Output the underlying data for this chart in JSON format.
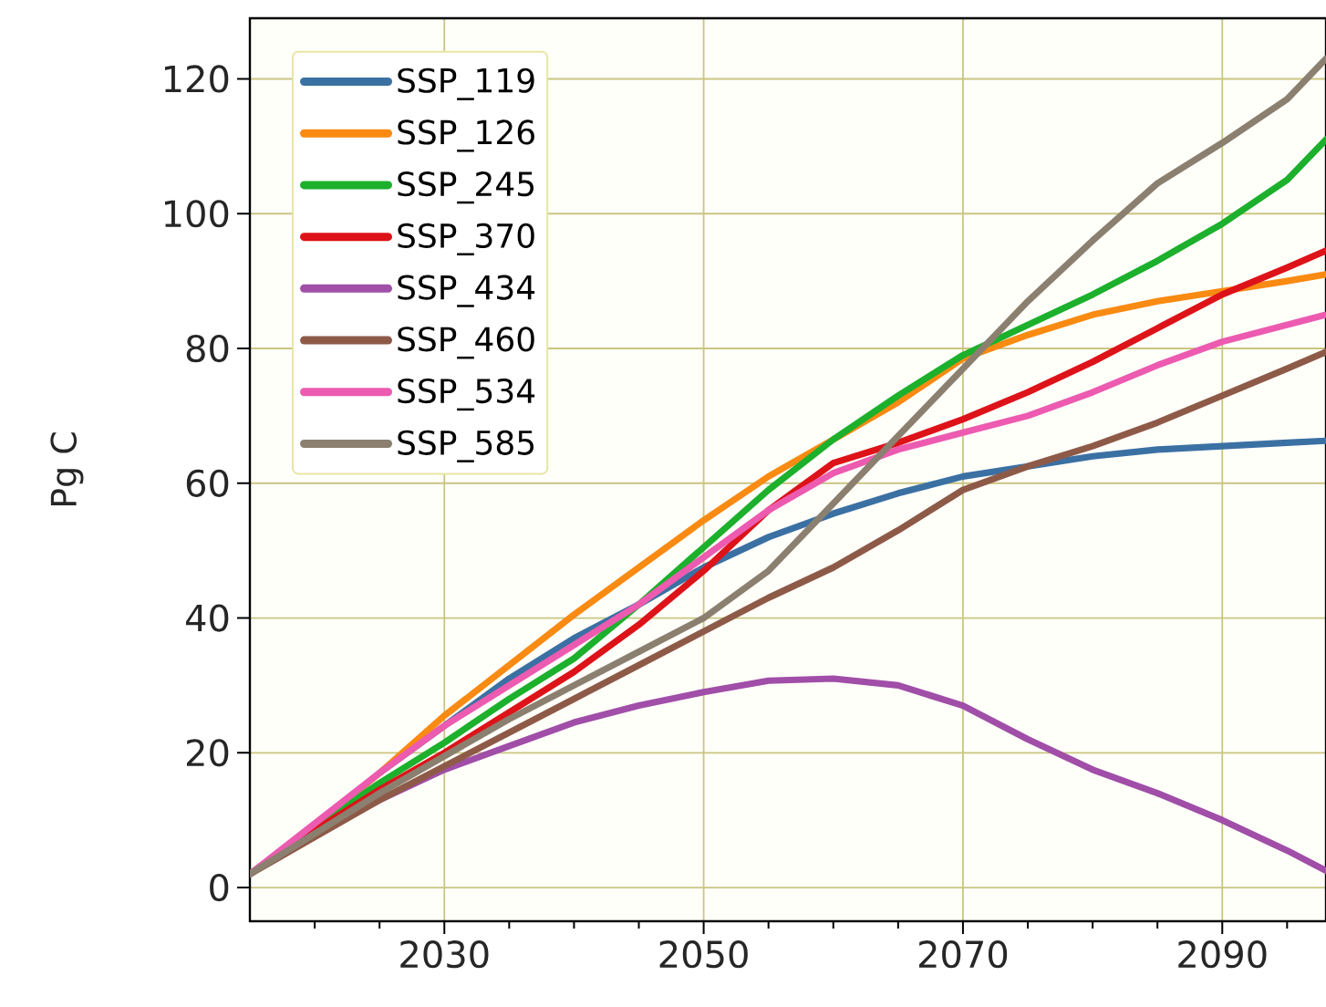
{
  "chart_data": {
    "type": "line",
    "ylabel": "Pg C",
    "x": [
      2015,
      2020,
      2025,
      2030,
      2035,
      2040,
      2045,
      2050,
      2055,
      2060,
      2065,
      2070,
      2075,
      2080,
      2085,
      2090,
      2095,
      2098
    ],
    "series": [
      {
        "name": "SSP_119",
        "color": "#3b70a3",
        "values": [
          null,
          null,
          17,
          24,
          31,
          37,
          42,
          47.5,
          52,
          55.5,
          58.5,
          61,
          62.5,
          64,
          65,
          65.5,
          66,
          66.3
        ]
      },
      {
        "name": "SSP_126",
        "color": "#f98a12",
        "values": [
          2,
          9,
          17,
          25.5,
          33,
          40.5,
          47.5,
          54.5,
          61,
          66.5,
          72,
          78.5,
          82,
          85,
          87,
          88.5,
          90,
          91
        ]
      },
      {
        "name": "SSP_245",
        "color": "#1cb02c",
        "values": [
          2,
          9,
          15.5,
          21.5,
          28,
          34,
          42,
          50.5,
          59,
          66.5,
          73,
          79,
          83.5,
          88,
          93,
          98.5,
          105,
          111
        ]
      },
      {
        "name": "SSP_370",
        "color": "#dd1319",
        "values": [
          2,
          8.5,
          14.5,
          20,
          26,
          32,
          39,
          47,
          56,
          63,
          66,
          69.5,
          73.5,
          78,
          83,
          88,
          92,
          94.5
        ]
      },
      {
        "name": "SSP_434",
        "color": "#a04ea8",
        "values": [
          2,
          8,
          13,
          17.5,
          21,
          24.5,
          27,
          29,
          30.7,
          31,
          30,
          27,
          22,
          17.5,
          14,
          10,
          5.5,
          2.5
        ]
      },
      {
        "name": "SSP_460",
        "color": "#8e5a48",
        "values": [
          2,
          7.5,
          13,
          18,
          23,
          28,
          33,
          38,
          43,
          47.5,
          53,
          59,
          62.5,
          65.5,
          69,
          73,
          77,
          79.5
        ]
      },
      {
        "name": "SSP_534",
        "color": "#ec5bb0",
        "values": [
          2,
          9.5,
          17,
          24,
          30,
          36,
          42,
          49,
          56,
          61.5,
          65,
          67.5,
          70,
          73.5,
          77.5,
          81,
          83.5,
          85
        ]
      },
      {
        "name": "SSP_585",
        "color": "#8b8070",
        "values": [
          2,
          8,
          14,
          19.5,
          25,
          30,
          35,
          40,
          47,
          57,
          67,
          77,
          87,
          96,
          104.5,
          110.5,
          117,
          123
        ]
      }
    ],
    "xlim": [
      2015,
      2098
    ],
    "ylim": [
      -5,
      129
    ],
    "xticks": [
      {
        "value": 2020,
        "label": null
      },
      {
        "value": 2025,
        "label": null
      },
      2030,
      {
        "value": 2035,
        "label": null
      },
      {
        "value": 2040,
        "label": null
      },
      {
        "value": 2045,
        "label": null
      },
      2050,
      {
        "value": 2055,
        "label": null
      },
      {
        "value": 2060,
        "label": null
      },
      {
        "value": 2065,
        "label": null
      },
      2070,
      {
        "value": 2075,
        "label": null
      },
      {
        "value": 2080,
        "label": null
      },
      {
        "value": 2085,
        "label": null
      },
      2090,
      {
        "value": 2095,
        "label": null
      }
    ],
    "yticks": [
      0,
      20,
      40,
      60,
      80,
      100,
      120
    ],
    "grid": true,
    "legend": "top left",
    "marker": "none",
    "line_style": "solid"
  }
}
